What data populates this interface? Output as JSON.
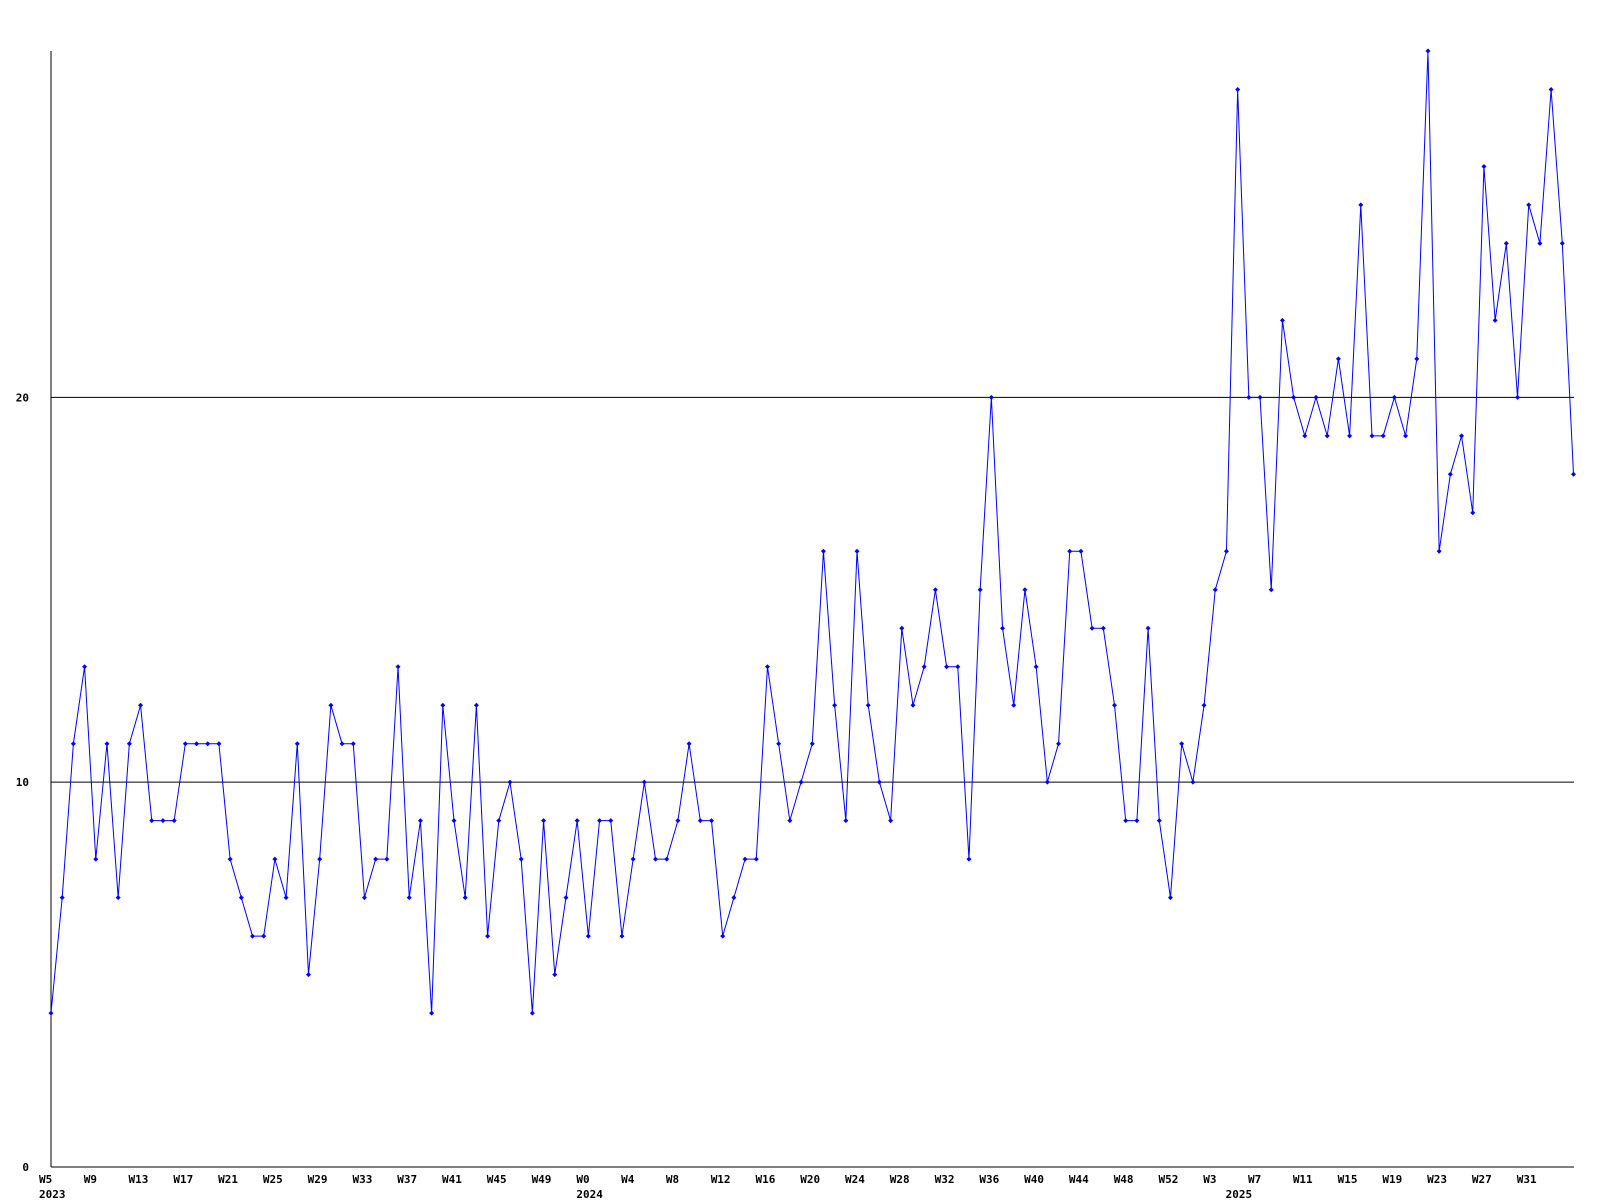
{
  "chart_data": {
    "type": "line",
    "categories": [
      "W5",
      null,
      null,
      null,
      "W9",
      null,
      null,
      null,
      "W13",
      null,
      null,
      null,
      "W17",
      null,
      null,
      null,
      "W21",
      null,
      null,
      null,
      "W25",
      null,
      null,
      null,
      "W29",
      null,
      null,
      null,
      "W33",
      null,
      null,
      null,
      "W37",
      null,
      null,
      null,
      "W41",
      null,
      null,
      null,
      "W45",
      null,
      null,
      null,
      "W49",
      null,
      null,
      null,
      "W0",
      null,
      null,
      null,
      "W4",
      null,
      null,
      null,
      "W8",
      null,
      null,
      null,
      "W12",
      null,
      null,
      null,
      "W16",
      null,
      null,
      null,
      "W20",
      null,
      null,
      null,
      "W24",
      null,
      null,
      null,
      "W28",
      null,
      null,
      null,
      "W32",
      null,
      null,
      null,
      "W36",
      null,
      null,
      null,
      "W40",
      null,
      null,
      null,
      "W44",
      null,
      null,
      null,
      "W48",
      null,
      null,
      null,
      "W52",
      null,
      null,
      null,
      "W3",
      null,
      null,
      null,
      "W7",
      null,
      null,
      null,
      "W11",
      null,
      null,
      null,
      "W15",
      null,
      null,
      null,
      "W19",
      null,
      null,
      null,
      "W23",
      null,
      null,
      null,
      "W27",
      null,
      null,
      null,
      "W31",
      null,
      null,
      null,
      null
    ],
    "secondary_labels": [
      "2023",
      null,
      null,
      null,
      null,
      null,
      null,
      null,
      null,
      null,
      null,
      null,
      null,
      null,
      null,
      null,
      null,
      null,
      null,
      null,
      null,
      null,
      null,
      null,
      null,
      null,
      null,
      null,
      null,
      null,
      null,
      null,
      null,
      null,
      null,
      null,
      null,
      null,
      null,
      null,
      null,
      null,
      null,
      null,
      null,
      null,
      null,
      null,
      "2024",
      null,
      null,
      null,
      null,
      null,
      null,
      null,
      null,
      null,
      null,
      null,
      null,
      null,
      null,
      null,
      null,
      null,
      null,
      null,
      null,
      null,
      null,
      null,
      null,
      null,
      null,
      null,
      null,
      null,
      null,
      null,
      null,
      null,
      null,
      null,
      null,
      null,
      null,
      null,
      null,
      null,
      null,
      null,
      null,
      null,
      null,
      null,
      null,
      null,
      null,
      null,
      null,
      null,
      null,
      null,
      null,
      null,
      "2025",
      null,
      null,
      null,
      null,
      null,
      null,
      null,
      null,
      null,
      null,
      null,
      null,
      null,
      null,
      null,
      null,
      null,
      null,
      null,
      null,
      null,
      null,
      null,
      null,
      null,
      null,
      null,
      null,
      null,
      null,
      null,
      null
    ],
    "series": [
      {
        "color": "#0000ff",
        "values": [
          4,
          7,
          11,
          13,
          8,
          11,
          7,
          11,
          12,
          9,
          9,
          9,
          11,
          11,
          11,
          11,
          8,
          7,
          6,
          6,
          8,
          7,
          11,
          5,
          8,
          12,
          11,
          11,
          7,
          8,
          8,
          13,
          7,
          9,
          4,
          12,
          9,
          7,
          12,
          6,
          9,
          10,
          8,
          4,
          9,
          5,
          7,
          9,
          6,
          9,
          9,
          6,
          8,
          10,
          8,
          8,
          9,
          11,
          9,
          9,
          6,
          7,
          8,
          8,
          13,
          11,
          9,
          10,
          11,
          16,
          12,
          9,
          16,
          12,
          10,
          9,
          14,
          12,
          13,
          15,
          13,
          13,
          8,
          15,
          20,
          14,
          12,
          15,
          13,
          10,
          11,
          16,
          16,
          14,
          14,
          12,
          9,
          9,
          14,
          9,
          7,
          11,
          10,
          12,
          15,
          16,
          28,
          20,
          20,
          15,
          22,
          20,
          19,
          20,
          19,
          21,
          19,
          25,
          19,
          19,
          20,
          19,
          21,
          29,
          16,
          18,
          19,
          17,
          26,
          22,
          24,
          20,
          25,
          24,
          28,
          24,
          18
        ]
      }
    ],
    "ylim": [
      0,
      29
    ],
    "yticks": [
      0,
      10,
      20
    ],
    "grid": true
  }
}
